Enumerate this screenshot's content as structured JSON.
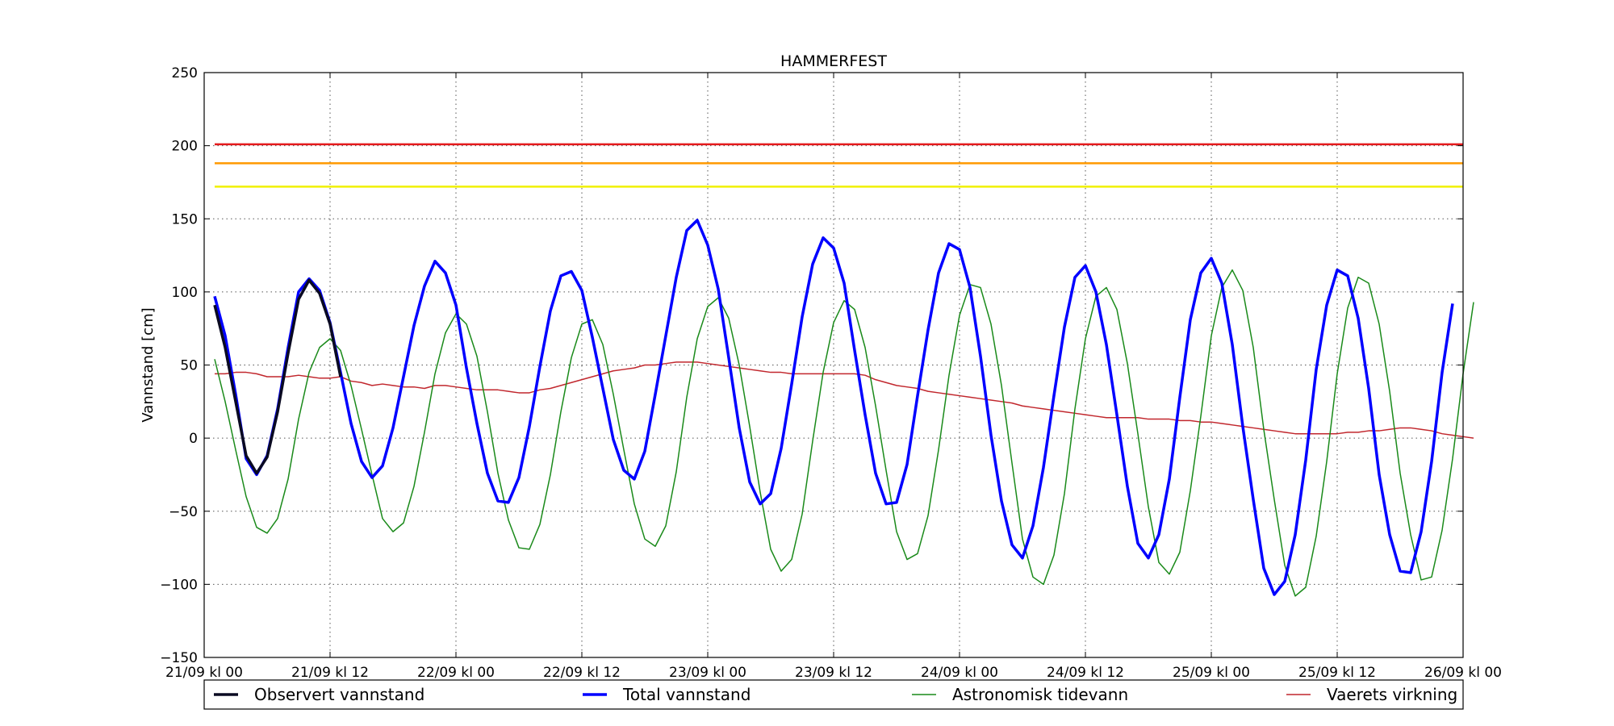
{
  "chart_data": {
    "type": "line",
    "title": "HAMMERFEST",
    "xlabel": "",
    "ylabel": "Vannstand [cm]",
    "ylim": [
      -150,
      250
    ],
    "xlim": [
      "2015-09-21T00:00",
      "2015-09-26T00:00"
    ],
    "yticks": [
      "250",
      "200",
      "150",
      "100",
      "50",
      "0",
      "−50",
      "−100",
      "−150"
    ],
    "xticks": [
      "21/09 kl 00",
      "21/09 kl 12",
      "22/09 kl 00",
      "22/09 kl 12",
      "23/09 kl 00",
      "23/09 kl 12",
      "24/09 kl 00",
      "24/09 kl 12",
      "25/09 kl 00",
      "25/09 kl 12",
      "26/09 kl 00"
    ],
    "grid": true,
    "legend_position": "bottom",
    "thresholds": [
      {
        "value": 201,
        "color": "#e41a1c"
      },
      {
        "value": 188,
        "color": "#ff9900"
      },
      {
        "value": 172,
        "color": "#f0f000"
      }
    ],
    "series": [
      {
        "name": "Observert vannstand",
        "color": "#0a0a22",
        "start": "2015-09-21T01:00",
        "step_hours": 1,
        "values": [
          91,
          62,
          25,
          -12,
          -24,
          -13,
          18,
          58,
          95,
          108,
          99,
          78,
          42
        ]
      },
      {
        "name": "Total vannstand",
        "color": "#0000ff",
        "start": "2015-09-21T01:00",
        "step_hours": 1,
        "values": [
          97,
          70,
          30,
          -14,
          -25,
          -12,
          20,
          62,
          100,
          109,
          101,
          79,
          45,
          10,
          -16,
          -27,
          -19,
          7,
          42,
          77,
          104,
          121,
          113,
          91,
          48,
          10,
          -24,
          -43,
          -44,
          -27,
          8,
          49,
          87,
          111,
          114,
          101,
          69,
          34,
          -1,
          -22,
          -28,
          -9,
          30,
          70,
          110,
          142,
          149,
          132,
          102,
          55,
          7,
          -30,
          -45,
          -38,
          -7,
          37,
          83,
          119,
          137,
          130,
          106,
          60,
          16,
          -24,
          -45,
          -44,
          -18,
          29,
          74,
          113,
          133,
          129,
          103,
          56,
          2,
          -43,
          -73,
          -82,
          -60,
          -20,
          29,
          76,
          110,
          118,
          100,
          64,
          16,
          -33,
          -72,
          -82,
          -66,
          -28,
          28,
          81,
          113,
          123,
          106,
          64,
          8,
          -42,
          -89,
          -107,
          -98,
          -66,
          -15,
          47,
          91,
          115,
          111,
          82,
          34,
          -25,
          -66,
          -91,
          -92,
          -64,
          -16,
          45,
          92
        ]
      },
      {
        "name": "Astronomisk tidevann",
        "color": "#1a8a1a",
        "start": "2015-09-21T01:00",
        "step_hours": 1,
        "values": [
          54,
          25,
          -8,
          -40,
          -61,
          -65,
          -55,
          -28,
          13,
          45,
          62,
          68,
          60,
          36,
          6,
          -25,
          -55,
          -64,
          -58,
          -33,
          4,
          44,
          72,
          85,
          78,
          56,
          18,
          -24,
          -56,
          -75,
          -76,
          -59,
          -25,
          18,
          55,
          78,
          81,
          64,
          30,
          -8,
          -45,
          -69,
          -74,
          -60,
          -23,
          28,
          68,
          90,
          96,
          82,
          50,
          8,
          -37,
          -76,
          -91,
          -83,
          -52,
          -2,
          45,
          79,
          94,
          88,
          62,
          22,
          -22,
          -64,
          -83,
          -79,
          -53,
          -8,
          43,
          84,
          105,
          103,
          78,
          36,
          -17,
          -69,
          -95,
          -100,
          -80,
          -38,
          20,
          68,
          97,
          103,
          88,
          51,
          3,
          -47,
          -85,
          -93,
          -78,
          -36,
          15,
          70,
          103,
          115,
          101,
          62,
          6,
          -42,
          -87,
          -108,
          -102,
          -67,
          -16,
          44,
          89,
          110,
          106,
          78,
          32,
          -24,
          -66,
          -97,
          -95,
          -63,
          -14,
          44,
          93
        ]
      },
      {
        "name": "Vaerets virkning",
        "color": "#c1272d",
        "start": "2015-09-21T01:00",
        "step_hours": 1,
        "values": [
          44,
          44,
          45,
          45,
          44,
          42,
          42,
          42,
          43,
          42,
          41,
          41,
          42,
          39,
          38,
          36,
          37,
          36,
          35,
          35,
          34,
          36,
          36,
          35,
          34,
          33,
          33,
          33,
          32,
          31,
          31,
          33,
          34,
          36,
          38,
          40,
          42,
          44,
          46,
          47,
          48,
          50,
          50,
          51,
          52,
          52,
          52,
          51,
          50,
          49,
          48,
          47,
          46,
          45,
          45,
          44,
          44,
          44,
          44,
          44,
          44,
          44,
          43,
          40,
          38,
          36,
          35,
          34,
          32,
          31,
          30,
          29,
          28,
          27,
          26,
          25,
          24,
          22,
          21,
          20,
          19,
          18,
          17,
          16,
          15,
          14,
          14,
          14,
          14,
          13,
          13,
          13,
          12,
          12,
          11,
          11,
          10,
          9,
          8,
          7,
          6,
          5,
          4,
          3,
          3,
          3,
          3,
          3,
          4,
          4,
          5,
          5,
          6,
          7,
          7,
          6,
          5,
          3,
          2,
          1,
          0
        ]
      }
    ]
  }
}
